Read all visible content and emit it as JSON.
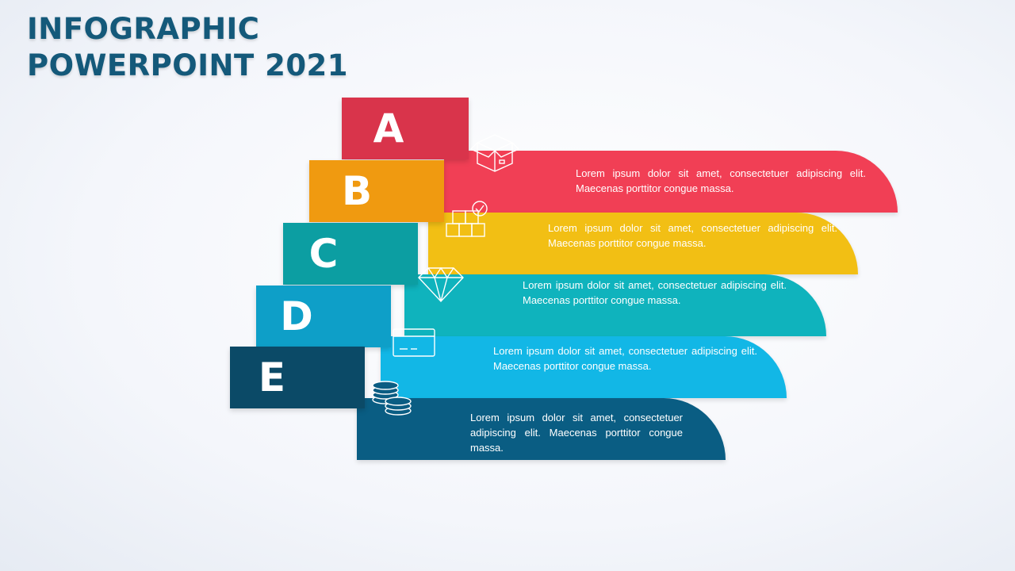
{
  "title": {
    "line1": "INFOGRAPHIC",
    "line2": "POWERPOINT 2021"
  },
  "colors": {
    "title": "#14597a",
    "a": "#f13f55",
    "b": "#f2bf14",
    "c": "#0fb3bd",
    "d": "#12b7e6",
    "e": "#0a5d83",
    "pencil_cap": "#0d5b80",
    "pencil_tip": "#f2c124"
  },
  "items": [
    {
      "letter": "A",
      "icon": "open-box-icon",
      "text": "Lorem ipsum dolor sit amet, consectetuer adipiscing elit. Maecenas porttitor  congue massa."
    },
    {
      "letter": "B",
      "icon": "stacked-boxes-check-icon",
      "text": "Lorem ipsum dolor sit amet, consectetuer adipiscing elit. Maecenas porttitor  congue massa."
    },
    {
      "letter": "C",
      "icon": "diamond-icon",
      "text": "Lorem ipsum dolor sit amet, consectetuer adipiscing elit. Maecenas porttitor  congue massa."
    },
    {
      "letter": "D",
      "icon": "credit-card-icon",
      "text": "Lorem ipsum dolor sit amet, consectetuer adipiscing elit. Maecenas porttitor  congue massa."
    },
    {
      "letter": "E",
      "icon": "coins-icon",
      "text": "Lorem ipsum dolor sit amet, consectetuer adipiscing elit. Maecenas porttitor  congue massa."
    }
  ]
}
